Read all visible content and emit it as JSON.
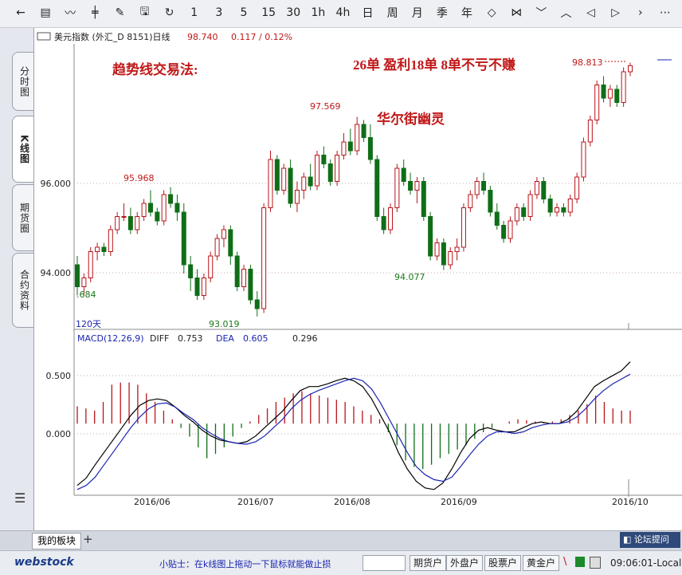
{
  "toolbar": {
    "items": [
      {
        "name": "back-arrow-icon",
        "glyph": "←"
      },
      {
        "name": "list-icon",
        "glyph": "▤"
      },
      {
        "name": "trend-icon",
        "glyph": "〰"
      },
      {
        "name": "kline-icon",
        "glyph": "╪"
      },
      {
        "name": "draw-icon",
        "glyph": "✎"
      },
      {
        "name": "save-icon",
        "glyph": "🖫"
      },
      {
        "name": "refresh-icon",
        "glyph": "↻"
      },
      {
        "name": "period-1min",
        "label": "1"
      },
      {
        "name": "period-3min",
        "label": "3"
      },
      {
        "name": "period-5min",
        "label": "5"
      },
      {
        "name": "period-15min",
        "label": "15"
      },
      {
        "name": "period-30min",
        "label": "30"
      },
      {
        "name": "period-1h",
        "label": "1h"
      },
      {
        "name": "period-4h",
        "label": "4h"
      },
      {
        "name": "period-day",
        "label": "日"
      },
      {
        "name": "period-week",
        "label": "周"
      },
      {
        "name": "period-month",
        "label": "月"
      },
      {
        "name": "period-season",
        "label": "季"
      },
      {
        "name": "period-year",
        "label": "年"
      },
      {
        "name": "zoom-in-icon",
        "glyph": "◇"
      },
      {
        "name": "zoom-out-icon",
        "glyph": "⋈"
      },
      {
        "name": "down-icon",
        "glyph": "﹀"
      },
      {
        "name": "up-icon",
        "glyph": "︿"
      },
      {
        "name": "left-icon",
        "glyph": "◁"
      },
      {
        "name": "right-icon",
        "glyph": "▷"
      },
      {
        "name": "next-icon",
        "glyph": "›"
      },
      {
        "name": "more-icon",
        "glyph": "⋯"
      }
    ]
  },
  "sidebar": {
    "tabs": [
      {
        "label": "分时图"
      },
      {
        "label": "K线图"
      },
      {
        "label": "期货圈"
      },
      {
        "label": "合约资料"
      }
    ]
  },
  "header": {
    "instrument": "美元指数 (外汇_D 8151)日线",
    "price": "98.740",
    "change": "0.117 / 0.12%"
  },
  "annotations": {
    "title_left": "趋势线交易法:",
    "title_right": "26单 盈利18单  8单不亏不赚",
    "watermark": "华尔街幽灵"
  },
  "labels": {
    "period": "120天",
    "last_price": "98.813",
    "high1": "95.968",
    "high2": "97.569",
    "low1": "93.019",
    "low2": "94.077",
    "low0": ".684"
  },
  "price_axis": {
    "ticks": [
      "96.000",
      "94.000"
    ]
  },
  "macd": {
    "title": "MACD(12,26,9)",
    "diff_label": "DIFF",
    "diff_value": "0.753",
    "dea_label": "DEA",
    "dea_value": "0.605",
    "macd_value": "0.296",
    "ticks": [
      "0.500",
      "0.000"
    ]
  },
  "date_axis": {
    "labels": [
      "2016/06",
      "2016/07",
      "2016/08",
      "2016/09",
      "2016/10"
    ]
  },
  "bottom": {
    "tab": "我的板块",
    "add": "+",
    "forum": "论坛提问"
  },
  "status": {
    "brand": "webstock",
    "tip": "小贴士：在k线图上拖动一下鼠标就能做止损",
    "buttons": [
      "期货户",
      "外盘户",
      "股票户",
      "黄金户"
    ],
    "time": "09:06:01-Local"
  },
  "colors": {
    "up": "#b8141a",
    "down": "#0f6e17",
    "diff": "#000000",
    "dea": "#1a25b0",
    "label": "#c01818",
    "low_label": "#1a7a1a"
  },
  "chart_data": {
    "type": "candlestick",
    "title": "美元指数 日线",
    "ylim": [
      92.8,
      99.2
    ],
    "macd_ylim": [
      -0.85,
      0.95
    ],
    "candles": [
      [
        94.2,
        94.4,
        93.5,
        93.7
      ],
      [
        93.7,
        94.0,
        93.5,
        93.9
      ],
      [
        93.9,
        94.6,
        93.8,
        94.5
      ],
      [
        94.5,
        94.7,
        94.3,
        94.6
      ],
      [
        94.6,
        94.7,
        94.4,
        94.5
      ],
      [
        94.5,
        95.1,
        94.4,
        95.0
      ],
      [
        95.0,
        95.4,
        94.9,
        95.3
      ],
      [
        95.3,
        95.6,
        95.2,
        95.3
      ],
      [
        95.3,
        95.5,
        94.9,
        95.0
      ],
      [
        95.0,
        95.4,
        94.9,
        95.3
      ],
      [
        95.3,
        95.7,
        95.2,
        95.6
      ],
      [
        95.6,
        95.9,
        95.3,
        95.4
      ],
      [
        95.4,
        95.5,
        95.1,
        95.2
      ],
      [
        95.2,
        95.9,
        95.1,
        95.8
      ],
      [
        95.8,
        95.97,
        95.5,
        95.6
      ],
      [
        95.6,
        95.8,
        95.2,
        95.4
      ],
      [
        95.4,
        95.6,
        94.0,
        94.2
      ],
      [
        94.2,
        94.4,
        93.6,
        93.9
      ],
      [
        93.9,
        94.1,
        93.4,
        93.5
      ],
      [
        93.5,
        94.0,
        93.4,
        93.9
      ],
      [
        93.9,
        94.5,
        93.8,
        94.4
      ],
      [
        94.4,
        94.9,
        94.3,
        94.8
      ],
      [
        94.8,
        95.1,
        94.6,
        95.0
      ],
      [
        95.0,
        95.1,
        94.2,
        94.4
      ],
      [
        94.4,
        94.5,
        93.6,
        93.7
      ],
      [
        93.7,
        94.2,
        93.6,
        94.1
      ],
      [
        94.1,
        94.2,
        93.3,
        93.4
      ],
      [
        93.4,
        93.6,
        93.02,
        93.2
      ],
      [
        93.2,
        95.6,
        93.1,
        95.5
      ],
      [
        95.5,
        96.8,
        95.4,
        96.6
      ],
      [
        96.6,
        96.7,
        95.8,
        95.9
      ],
      [
        95.9,
        96.5,
        95.8,
        96.4
      ],
      [
        96.4,
        96.6,
        95.5,
        95.6
      ],
      [
        95.6,
        96.1,
        95.4,
        95.9
      ],
      [
        95.9,
        96.3,
        95.7,
        96.2
      ],
      [
        96.2,
        96.5,
        95.9,
        96.0
      ],
      [
        96.0,
        96.8,
        95.9,
        96.7
      ],
      [
        96.7,
        96.9,
        96.4,
        96.5
      ],
      [
        96.5,
        96.6,
        96.0,
        96.1
      ],
      [
        96.1,
        96.8,
        96.0,
        96.7
      ],
      [
        96.7,
        97.2,
        96.6,
        97.0
      ],
      [
        97.0,
        97.3,
        96.7,
        96.8
      ],
      [
        96.8,
        97.57,
        96.7,
        97.4
      ],
      [
        97.4,
        97.5,
        97.0,
        97.1
      ],
      [
        97.1,
        97.4,
        96.5,
        96.6
      ],
      [
        96.6,
        96.7,
        95.2,
        95.3
      ],
      [
        95.3,
        95.5,
        94.9,
        95.0
      ],
      [
        95.0,
        95.6,
        94.9,
        95.5
      ],
      [
        95.5,
        96.5,
        95.4,
        96.4
      ],
      [
        96.4,
        96.6,
        96.0,
        96.1
      ],
      [
        96.1,
        96.3,
        95.8,
        95.9
      ],
      [
        95.9,
        96.2,
        95.6,
        96.1
      ],
      [
        96.1,
        96.2,
        95.2,
        95.3
      ],
      [
        95.3,
        95.4,
        94.3,
        94.4
      ],
      [
        94.4,
        94.8,
        94.3,
        94.7
      ],
      [
        94.7,
        94.8,
        94.08,
        94.2
      ],
      [
        94.2,
        94.6,
        94.1,
        94.5
      ],
      [
        94.5,
        94.8,
        94.3,
        94.6
      ],
      [
        94.6,
        95.6,
        94.5,
        95.5
      ],
      [
        95.5,
        95.9,
        95.4,
        95.8
      ],
      [
        95.8,
        96.2,
        95.7,
        96.1
      ],
      [
        96.1,
        96.3,
        95.8,
        95.9
      ],
      [
        95.9,
        96.0,
        95.3,
        95.4
      ],
      [
        95.4,
        95.6,
        95.0,
        95.1
      ],
      [
        95.1,
        95.2,
        94.7,
        94.8
      ],
      [
        94.8,
        95.3,
        94.7,
        95.2
      ],
      [
        95.2,
        95.6,
        95.1,
        95.5
      ],
      [
        95.5,
        95.6,
        95.2,
        95.3
      ],
      [
        95.3,
        95.9,
        95.2,
        95.8
      ],
      [
        95.8,
        96.2,
        95.7,
        96.1
      ],
      [
        96.1,
        96.2,
        95.6,
        95.7
      ],
      [
        95.7,
        95.8,
        95.3,
        95.4
      ],
      [
        95.4,
        95.6,
        95.3,
        95.5
      ],
      [
        95.5,
        95.6,
        95.3,
        95.4
      ],
      [
        95.4,
        95.8,
        95.3,
        95.7
      ],
      [
        95.7,
        96.3,
        95.6,
        96.2
      ],
      [
        96.2,
        97.1,
        96.1,
        97.0
      ],
      [
        97.0,
        97.6,
        96.9,
        97.5
      ],
      [
        97.5,
        98.4,
        97.4,
        98.3
      ],
      [
        98.3,
        98.5,
        97.9,
        98.0
      ],
      [
        98.0,
        98.3,
        97.8,
        98.2
      ],
      [
        98.2,
        98.3,
        97.8,
        97.9
      ],
      [
        97.9,
        98.7,
        97.8,
        98.6
      ],
      [
        98.6,
        98.81,
        98.5,
        98.74
      ]
    ],
    "diff": [
      -0.75,
      -0.66,
      -0.5,
      -0.35,
      -0.2,
      -0.05,
      0.1,
      0.22,
      0.28,
      0.3,
      0.28,
      0.2,
      0.1,
      0.02,
      -0.08,
      -0.15,
      -0.2,
      -0.22,
      -0.24,
      -0.22,
      -0.15,
      -0.05,
      0.05,
      0.15,
      0.28,
      0.4,
      0.45,
      0.45,
      0.48,
      0.52,
      0.55,
      0.52,
      0.45,
      0.3,
      0.1,
      -0.1,
      -0.35,
      -0.55,
      -0.7,
      -0.78,
      -0.8,
      -0.72,
      -0.55,
      -0.35,
      -0.18,
      -0.08,
      -0.05,
      -0.08,
      -0.1,
      -0.1,
      -0.05,
      0.0,
      0.02,
      0.0,
      0.0,
      0.05,
      0.15,
      0.3,
      0.45,
      0.52,
      0.58,
      0.64,
      0.75
    ],
    "dea": [
      -0.8,
      -0.75,
      -0.65,
      -0.5,
      -0.35,
      -0.2,
      -0.05,
      0.08,
      0.18,
      0.24,
      0.25,
      0.2,
      0.12,
      0.05,
      -0.05,
      -0.12,
      -0.18,
      -0.22,
      -0.24,
      -0.25,
      -0.22,
      -0.15,
      -0.05,
      0.05,
      0.18,
      0.28,
      0.35,
      0.4,
      0.44,
      0.48,
      0.52,
      0.55,
      0.52,
      0.42,
      0.25,
      0.05,
      -0.15,
      -0.35,
      -0.52,
      -0.62,
      -0.68,
      -0.7,
      -0.65,
      -0.52,
      -0.38,
      -0.25,
      -0.15,
      -0.1,
      -0.1,
      -0.12,
      -0.1,
      -0.05,
      -0.02,
      0.0,
      0.0,
      0.02,
      0.08,
      0.18,
      0.3,
      0.4,
      0.48,
      0.54,
      0.6
    ],
    "macd_hist": [
      0.4,
      0.35,
      0.3,
      0.5,
      0.9,
      0.95,
      0.95,
      0.9,
      0.7,
      0.5,
      0.3,
      0.1,
      -0.1,
      -0.3,
      -0.55,
      -0.8,
      -0.7,
      -0.55,
      -0.3,
      -0.1,
      0.05,
      0.2,
      0.35,
      0.5,
      0.6,
      0.7,
      0.75,
      0.7,
      0.65,
      0.6,
      0.55,
      0.5,
      0.4,
      0.3,
      0.2,
      0.1,
      -0.2,
      -0.5,
      -0.85,
      -1.0,
      -1.05,
      -0.95,
      -0.8,
      -0.7,
      -0.6,
      -0.5,
      -0.35,
      -0.2,
      -0.1,
      0.0,
      0.05,
      0.1,
      0.08,
      0.05,
      0.02,
      0.05,
      0.1,
      0.2,
      0.3,
      0.45,
      0.65,
      0.5,
      0.35,
      0.3,
      0.3
    ]
  }
}
